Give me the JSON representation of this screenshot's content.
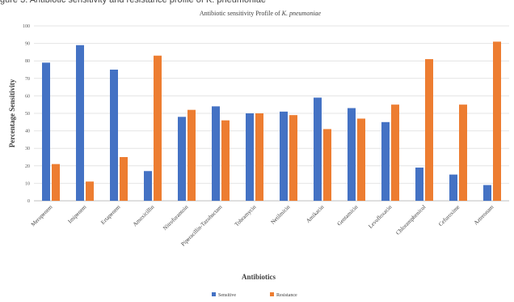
{
  "caption": "gure 3. Antibiotic sensitivity and resistance profile of K. pneumoniae",
  "chart_data": {
    "type": "bar",
    "title_prefix": "Antibiotic sensitivity Profile of ",
    "title_italic": "K. pneumoniae",
    "xlabel": "Antibiotics",
    "ylabel": "Percentage Sensitivity",
    "ylim": [
      0,
      100
    ],
    "yticks": [
      0,
      10,
      20,
      30,
      40,
      50,
      60,
      70,
      80,
      90,
      100
    ],
    "grid": true,
    "legend_position": "bottom",
    "categories": [
      "Meropenem",
      "Imipenem",
      "Ertapenem",
      "Amoxicillin",
      "Nitrofurantoin",
      "Piperacillin-Tazobactam",
      "Tobramycin",
      "Netilmicin",
      "Amikacin",
      "Gentamicin",
      "Levofloxacin",
      "Chloramphenicol",
      "Cefuroxime",
      "Aztreonam"
    ],
    "series": [
      {
        "name": "Sensitive",
        "color": "#4472C4",
        "values": [
          79,
          89,
          75,
          17,
          48,
          54,
          50,
          51,
          59,
          53,
          45,
          19,
          15,
          9
        ]
      },
      {
        "name": "Resistance",
        "color": "#ED7D31",
        "values": [
          21,
          11,
          25,
          83,
          52,
          46,
          50,
          49,
          41,
          47,
          55,
          81,
          55,
          91
        ]
      }
    ]
  }
}
